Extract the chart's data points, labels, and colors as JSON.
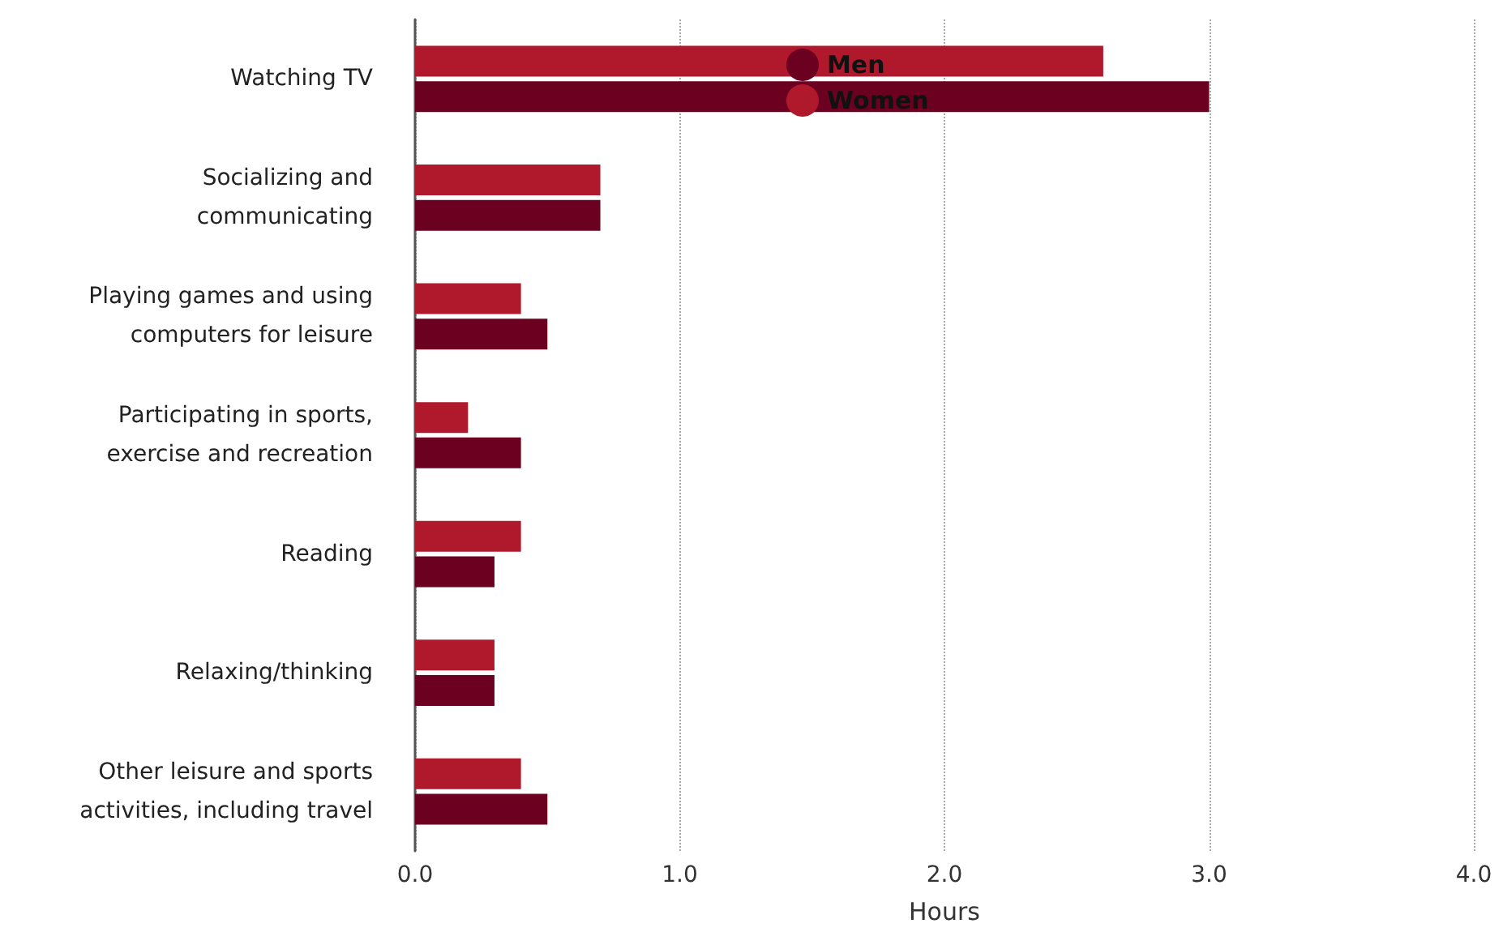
{
  "chart_data": {
    "type": "bar",
    "orientation": "horizontal",
    "xlabel": "Hours",
    "categories": [
      "Watching TV",
      "Socializing and\ncommunicating",
      "Playing games and using\ncomputers for leisure",
      "Participating in sports,\nexercise and recreation",
      "Reading",
      "Relaxing/thinking",
      "Other leisure and sports\nactivities, including travel"
    ],
    "series": [
      {
        "name": "Men",
        "color": "#6b0020",
        "values": [
          3.0,
          0.7,
          0.5,
          0.4,
          0.3,
          0.3,
          0.5
        ]
      },
      {
        "name": "Women",
        "color": "#b0182b",
        "values": [
          2.6,
          0.7,
          0.4,
          0.2,
          0.4,
          0.3,
          0.4
        ]
      }
    ],
    "xlim": [
      0,
      4
    ],
    "xticks": [
      {
        "value": 0,
        "label": "0.0"
      },
      {
        "value": 1,
        "label": "1.0"
      },
      {
        "value": 2,
        "label": "2.0"
      },
      {
        "value": 3,
        "label": "3.0"
      },
      {
        "value": 4,
        "label": "4.0"
      }
    ],
    "grid": "x",
    "legend": "top",
    "marker": "circle"
  }
}
